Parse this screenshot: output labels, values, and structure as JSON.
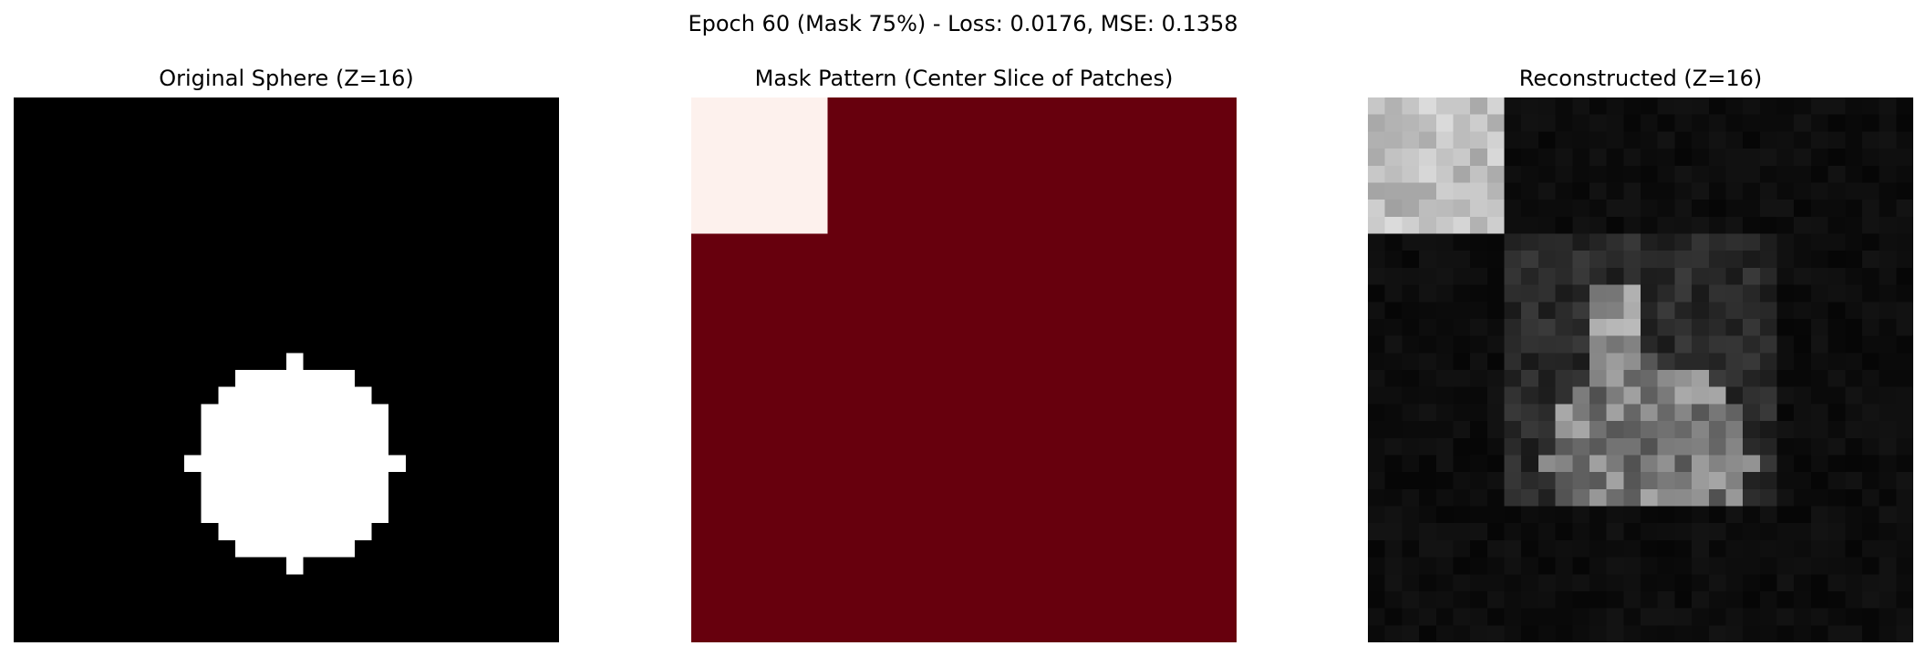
{
  "figure": {
    "suptitle": "Epoch 60 (Mask 75%) - Loss: 0.0176, MSE: 0.1358"
  },
  "panels": [
    {
      "title": "Original Sphere (Z=16)",
      "cmap": "gray"
    },
    {
      "title": "Mask Pattern (Center Slice of Patches)",
      "cmap": "Reds"
    },
    {
      "title": "Reconstructed (Z=16)",
      "cmap": "gray"
    }
  ],
  "colors": {
    "background": "#ffffff",
    "sphere": "#ffffff",
    "sphere_background": "#000000",
    "mask_visible": "#fdf1ed",
    "mask_masked": "#67000d"
  },
  "image": {
    "grid_size": 32,
    "patch_size": 8,
    "z_slice": 16,
    "visible_patches": [
      [
        0,
        0
      ]
    ],
    "sphere_rows": [
      [
        15,
        16,
        16
      ],
      [
        16,
        13,
        19
      ],
      [
        17,
        12,
        20
      ],
      [
        18,
        11,
        21
      ],
      [
        19,
        11,
        21
      ],
      [
        20,
        11,
        21
      ],
      [
        21,
        10,
        22
      ],
      [
        22,
        11,
        21
      ],
      [
        23,
        11,
        21
      ],
      [
        24,
        11,
        21
      ],
      [
        25,
        12,
        20
      ],
      [
        26,
        13,
        19
      ],
      [
        27,
        16,
        16
      ]
    ]
  }
}
